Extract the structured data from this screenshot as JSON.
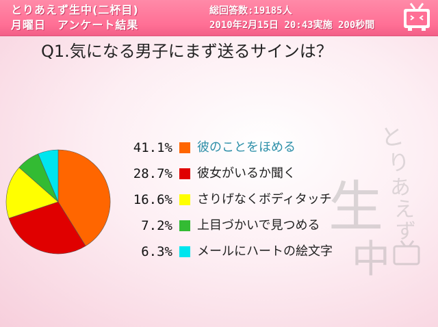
{
  "header": {
    "left_line1": "とりあえず生中(二杯目)",
    "left_line2": "月曜日　アンケート結果",
    "right_line1": "総回答数:19185人",
    "right_line2": "2010年2月15日 20:43実施 200秒間"
  },
  "question": "Q1.気になる男子にまず送るサインは？",
  "colors": {
    "header": "#ff6f95",
    "slice1": "#ff6600",
    "slice2": "#e00000",
    "slice3": "#ffff00",
    "slice4": "#33bb33",
    "slice5": "#00e5ee"
  },
  "chart_data": {
    "type": "pie",
    "title": "Q1.気になる男子にまず送るサインは？",
    "unit": "%",
    "slices": [
      {
        "label": "彼のことをほめる",
        "value": 41.1,
        "display": "41.1%",
        "color": "#ff6600"
      },
      {
        "label": "彼女がいるか聞く",
        "value": 28.7,
        "display": "28.7%",
        "color": "#e00000"
      },
      {
        "label": "さりげなくボディタッチ",
        "value": 16.6,
        "display": "16.6%",
        "color": "#ffff00"
      },
      {
        "label": "上目づかいで見つめる",
        "value": 7.2,
        "display": "7.2%",
        "color": "#33bb33"
      },
      {
        "label": "メールにハートの絵文字",
        "value": 6.3,
        "display": "6.3%",
        "color": "#00e5ee"
      }
    ],
    "legend_position": "right"
  },
  "icons": {
    "logo": "tv-logo-icon",
    "watermark": "toriaezu-namachu-watermark"
  }
}
